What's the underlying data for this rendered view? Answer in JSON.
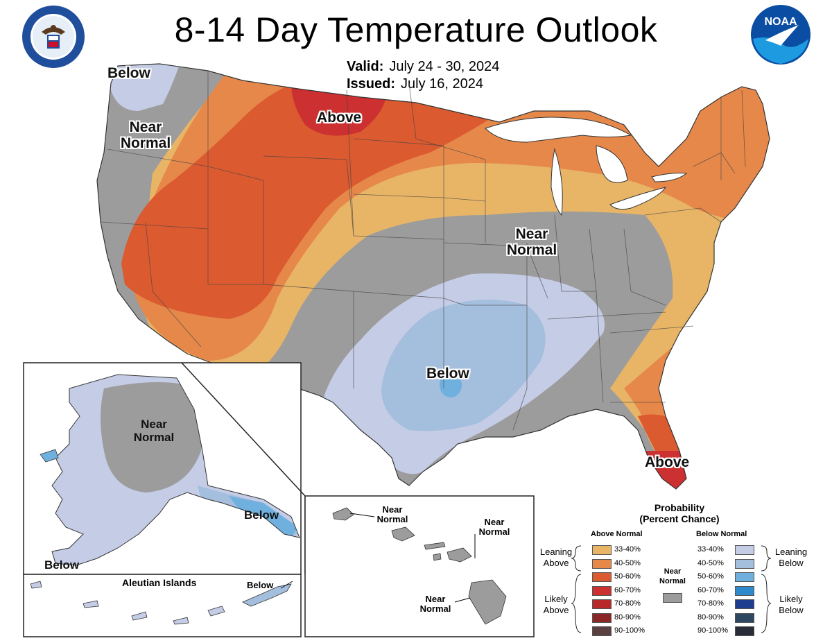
{
  "title": "8-14 Day Temperature Outlook",
  "valid_label": "Valid:",
  "valid_value": "July 24 - 30, 2024",
  "issued_label": "Issued:",
  "issued_value": "July 16, 2024",
  "logos": {
    "left": "DEPARTMENT OF COMMERCE UNITED STATES OF AMERICA",
    "right": "NOAA"
  },
  "conus_labels": {
    "below_nw": "Below",
    "near_normal_nw_line1": "Near",
    "near_normal_nw_line2": "Normal",
    "above_north": "Above",
    "near_normal_central_line1": "Near",
    "near_normal_central_line2": "Normal",
    "below_south": "Below",
    "above_florida": "Above"
  },
  "alaska_labels": {
    "near_normal_line1": "Near",
    "near_normal_line2": "Normal",
    "below_se": "Below",
    "below_sw": "Below",
    "aleutian_title": "Aleutian Islands",
    "below_aleutian": "Below"
  },
  "hawaii_labels": {
    "nn1_line1": "Near",
    "nn1_line2": "Normal",
    "nn2_line1": "Near",
    "nn2_line2": "Normal",
    "nn3_line1": "Near",
    "nn3_line2": "Normal"
  },
  "legend": {
    "title_line1": "Probability",
    "title_line2": "(Percent Chance)",
    "above_head": "Above Normal",
    "below_head": "Below Normal",
    "near_head_line1": "Near",
    "near_head_line2": "Normal",
    "leaning_above_1": "Leaning",
    "leaning_above_2": "Above",
    "likely_above_1": "Likely",
    "likely_above_2": "Above",
    "leaning_below_1": "Leaning",
    "leaning_below_2": "Below",
    "likely_below_1": "Likely",
    "likely_below_2": "Below",
    "above_bins": [
      {
        "label": "33-40%",
        "color": "#E8B566"
      },
      {
        "label": "40-50%",
        "color": "#E6884A"
      },
      {
        "label": "50-60%",
        "color": "#DB5A30"
      },
      {
        "label": "60-70%",
        "color": "#CC3030"
      },
      {
        "label": "70-80%",
        "color": "#B82828"
      },
      {
        "label": "80-90%",
        "color": "#8A2828"
      },
      {
        "label": "90-100%",
        "color": "#5A4040"
      }
    ],
    "below_bins": [
      {
        "label": "33-40%",
        "color": "#C5CCE6"
      },
      {
        "label": "40-50%",
        "color": "#A4BEDD"
      },
      {
        "label": "50-60%",
        "color": "#6FB0DE"
      },
      {
        "label": "60-70%",
        "color": "#2F8ACB"
      },
      {
        "label": "70-80%",
        "color": "#1D3E8F"
      },
      {
        "label": "80-90%",
        "color": "#2E4760"
      },
      {
        "label": "90-100%",
        "color": "#272C36"
      }
    ],
    "near_color": "#9C9C9C"
  }
}
